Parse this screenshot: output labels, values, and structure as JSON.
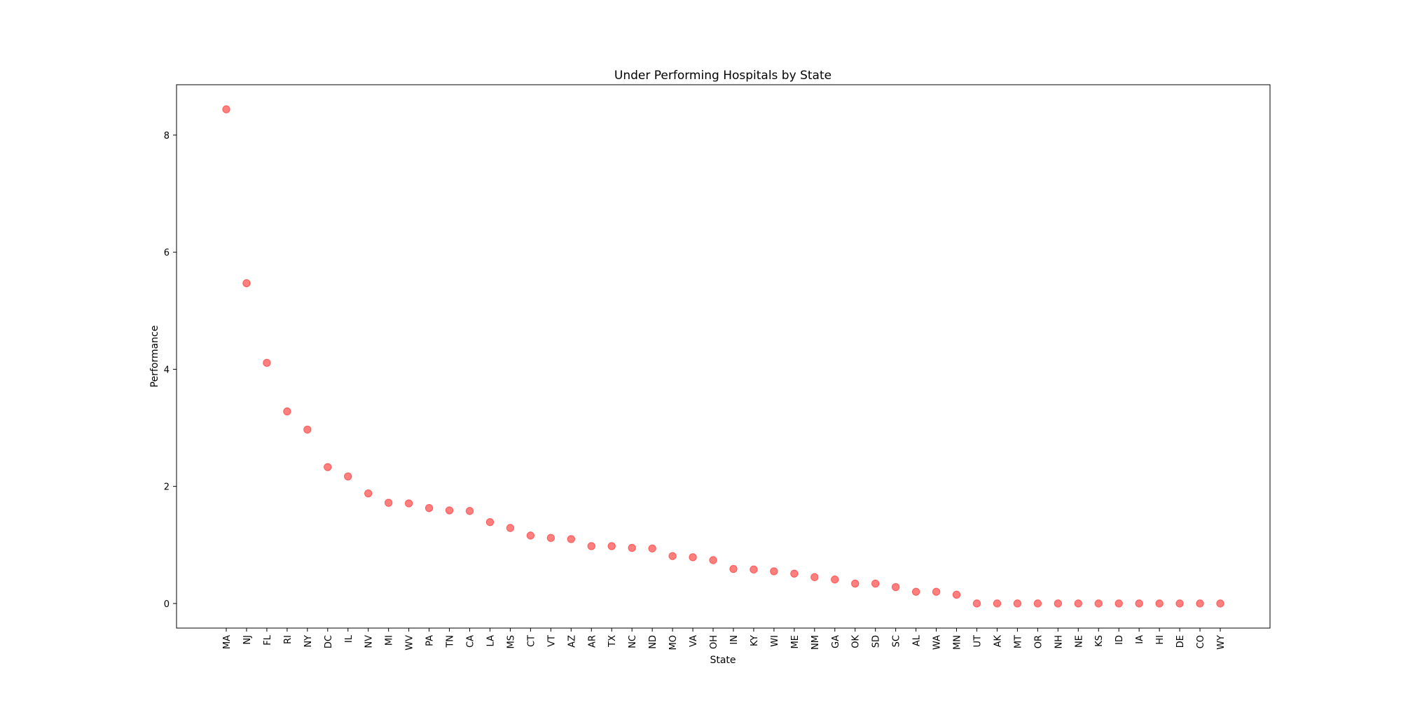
{
  "chart_data": {
    "type": "scatter",
    "title": "Under Performing Hospitals by State",
    "xlabel": "State",
    "ylabel": "Performance",
    "categories": [
      "MA",
      "NJ",
      "FL",
      "RI",
      "NY",
      "DC",
      "IL",
      "NV",
      "MI",
      "WV",
      "PA",
      "TN",
      "CA",
      "LA",
      "MS",
      "CT",
      "VT",
      "AZ",
      "AR",
      "TX",
      "NC",
      "ND",
      "MO",
      "VA",
      "OH",
      "IN",
      "KY",
      "WI",
      "ME",
      "NM",
      "GA",
      "OK",
      "SD",
      "SC",
      "AL",
      "WA",
      "MN",
      "UT",
      "AK",
      "MT",
      "OR",
      "NH",
      "NE",
      "KS",
      "ID",
      "IA",
      "HI",
      "DE",
      "CO",
      "WY"
    ],
    "values": [
      8.44,
      5.47,
      4.11,
      3.28,
      2.97,
      2.33,
      2.17,
      1.88,
      1.72,
      1.71,
      1.63,
      1.59,
      1.58,
      1.39,
      1.29,
      1.16,
      1.12,
      1.1,
      0.98,
      0.98,
      0.95,
      0.94,
      0.81,
      0.79,
      0.74,
      0.59,
      0.58,
      0.55,
      0.51,
      0.45,
      0.41,
      0.34,
      0.34,
      0.28,
      0.2,
      0.2,
      0.15,
      0.0,
      0.0,
      0.0,
      0.0,
      0.0,
      0.0,
      0.0,
      0.0,
      0.0,
      0.0,
      0.0,
      0.0,
      0.0
    ],
    "yticks": [
      0,
      2,
      4,
      6,
      8
    ],
    "ylim": [
      -0.42,
      8.86
    ],
    "grid": false,
    "marker_color": "#ff0000",
    "marker_alpha": 0.5
  }
}
